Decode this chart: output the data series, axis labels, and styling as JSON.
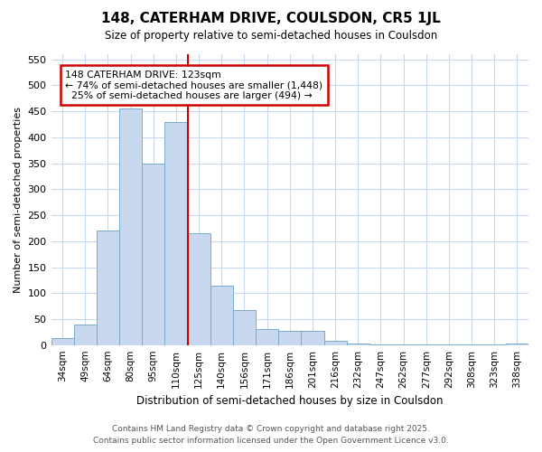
{
  "title1": "148, CATERHAM DRIVE, COULSDON, CR5 1JL",
  "title2": "Size of property relative to semi-detached houses in Coulsdon",
  "xlabel": "Distribution of semi-detached houses by size in Coulsdon",
  "ylabel": "Number of semi-detached properties",
  "categories": [
    "34sqm",
    "49sqm",
    "64sqm",
    "80sqm",
    "95sqm",
    "110sqm",
    "125sqm",
    "140sqm",
    "156sqm",
    "171sqm",
    "186sqm",
    "201sqm",
    "216sqm",
    "232sqm",
    "247sqm",
    "262sqm",
    "277sqm",
    "292sqm",
    "308sqm",
    "323sqm",
    "338sqm"
  ],
  "values": [
    13,
    40,
    220,
    455,
    350,
    430,
    215,
    115,
    68,
    30,
    28,
    28,
    8,
    3,
    2,
    1,
    1,
    1,
    1,
    1,
    3
  ],
  "bar_color": "#c8d8ee",
  "bar_edge_color": "#7aaacc",
  "vline_color": "#cc0000",
  "annotation_text": "148 CATERHAM DRIVE: 123sqm\n← 74% of semi-detached houses are smaller (1,448)\n  25% of semi-detached houses are larger (494) →",
  "annotation_box_color": "#ffffff",
  "annotation_box_edge": "#cc0000",
  "ylim": [
    0,
    560
  ],
  "yticks": [
    0,
    50,
    100,
    150,
    200,
    250,
    300,
    350,
    400,
    450,
    500,
    550
  ],
  "footer_line1": "Contains HM Land Registry data © Crown copyright and database right 2025.",
  "footer_line2": "Contains public sector information licensed under the Open Government Licence v3.0.",
  "bg_color": "#ffffff",
  "grid_color": "#c8d8ee"
}
